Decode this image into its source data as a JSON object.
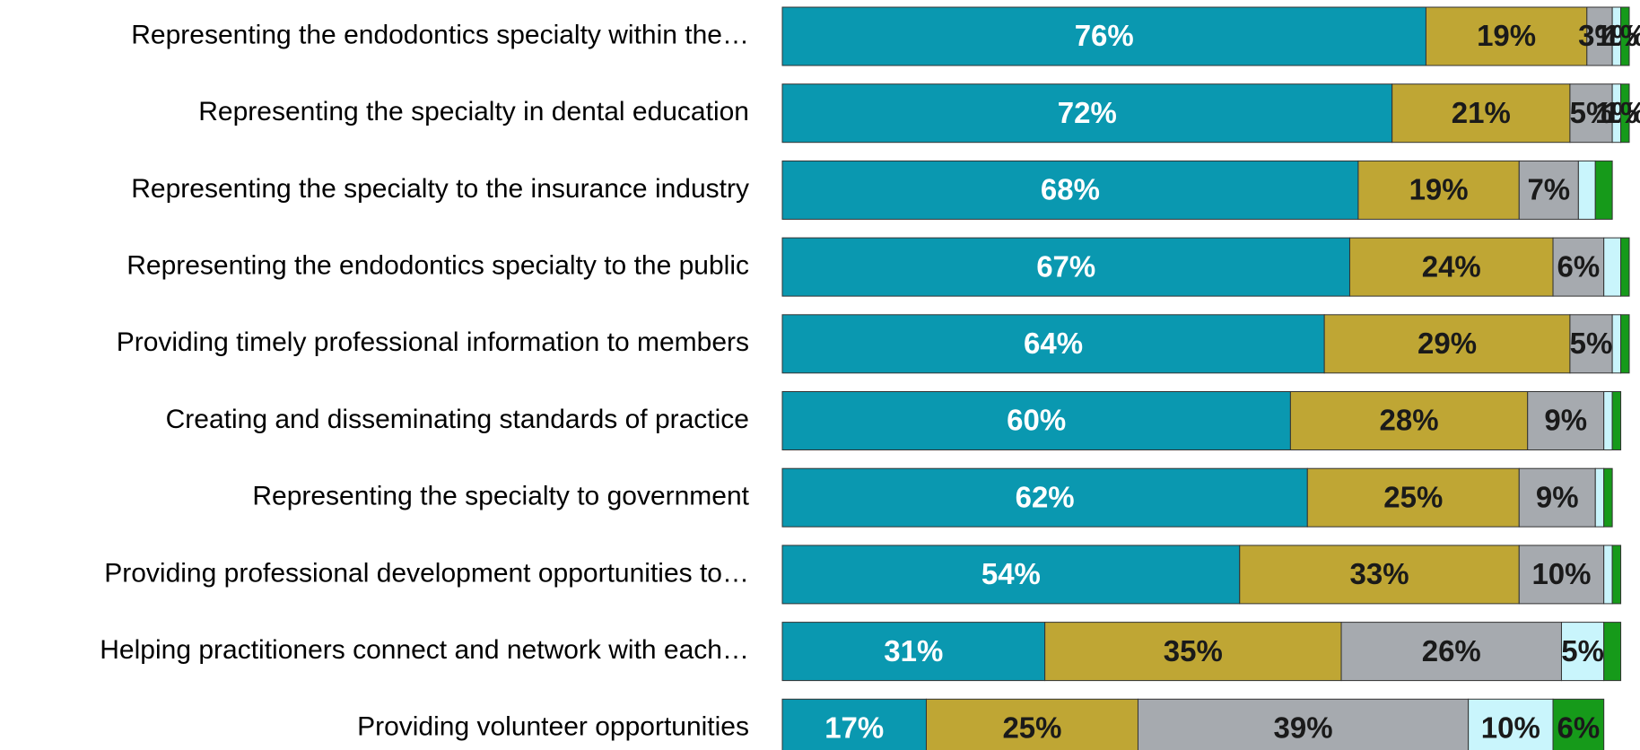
{
  "chart_data": {
    "type": "stacked-bar",
    "orientation": "horizontal",
    "categories": [
      "Representing the endodontics specialty within the…",
      "Representing the specialty in dental education",
      "Representing the specialty to the insurance industry",
      "Representing the endodontics specialty to the public",
      "Providing timely professional information to members",
      "Creating and disseminating standards of practice",
      "Representing the specialty to government",
      "Providing professional development opportunities to…",
      "Helping practitioners connect and network with each…",
      "Providing volunteer opportunities"
    ],
    "series": [
      {
        "color": "#0a98b0",
        "values": [
          76,
          72,
          68,
          67,
          64,
          60,
          62,
          54,
          31,
          17
        ],
        "value_labels": [
          "76%",
          "72%",
          "68%",
          "67%",
          "64%",
          "60%",
          "62%",
          "54%",
          "31%",
          "17%"
        ]
      },
      {
        "color": "#bfa634",
        "values": [
          19,
          21,
          19,
          24,
          29,
          28,
          25,
          33,
          35,
          25
        ],
        "value_labels": [
          "19%",
          "21%",
          "19%",
          "24%",
          "29%",
          "28%",
          "25%",
          "33%",
          "35%",
          "25%"
        ]
      },
      {
        "color": "#a6aaaf",
        "values": [
          3,
          5,
          7,
          6,
          5,
          9,
          9,
          10,
          26,
          39
        ],
        "value_labels": [
          "3%",
          "5%",
          "7%",
          "6%",
          "5%",
          "9%",
          "9%",
          "10%",
          "26%",
          "39%"
        ]
      },
      {
        "color": "#c9f5fc",
        "values": [
          1,
          1,
          2,
          2,
          1,
          1,
          1,
          1,
          5,
          10
        ],
        "value_labels": [
          "1%",
          "1%",
          null,
          null,
          null,
          null,
          null,
          null,
          "5%",
          "10%"
        ]
      },
      {
        "color": "#169a1a",
        "values": [
          1,
          1,
          2,
          1,
          1,
          1,
          1,
          1,
          2,
          6
        ],
        "value_labels": [
          "1%",
          "1%",
          null,
          null,
          null,
          null,
          null,
          null,
          null,
          "6%"
        ]
      }
    ],
    "xlim": [
      0,
      100
    ]
  }
}
